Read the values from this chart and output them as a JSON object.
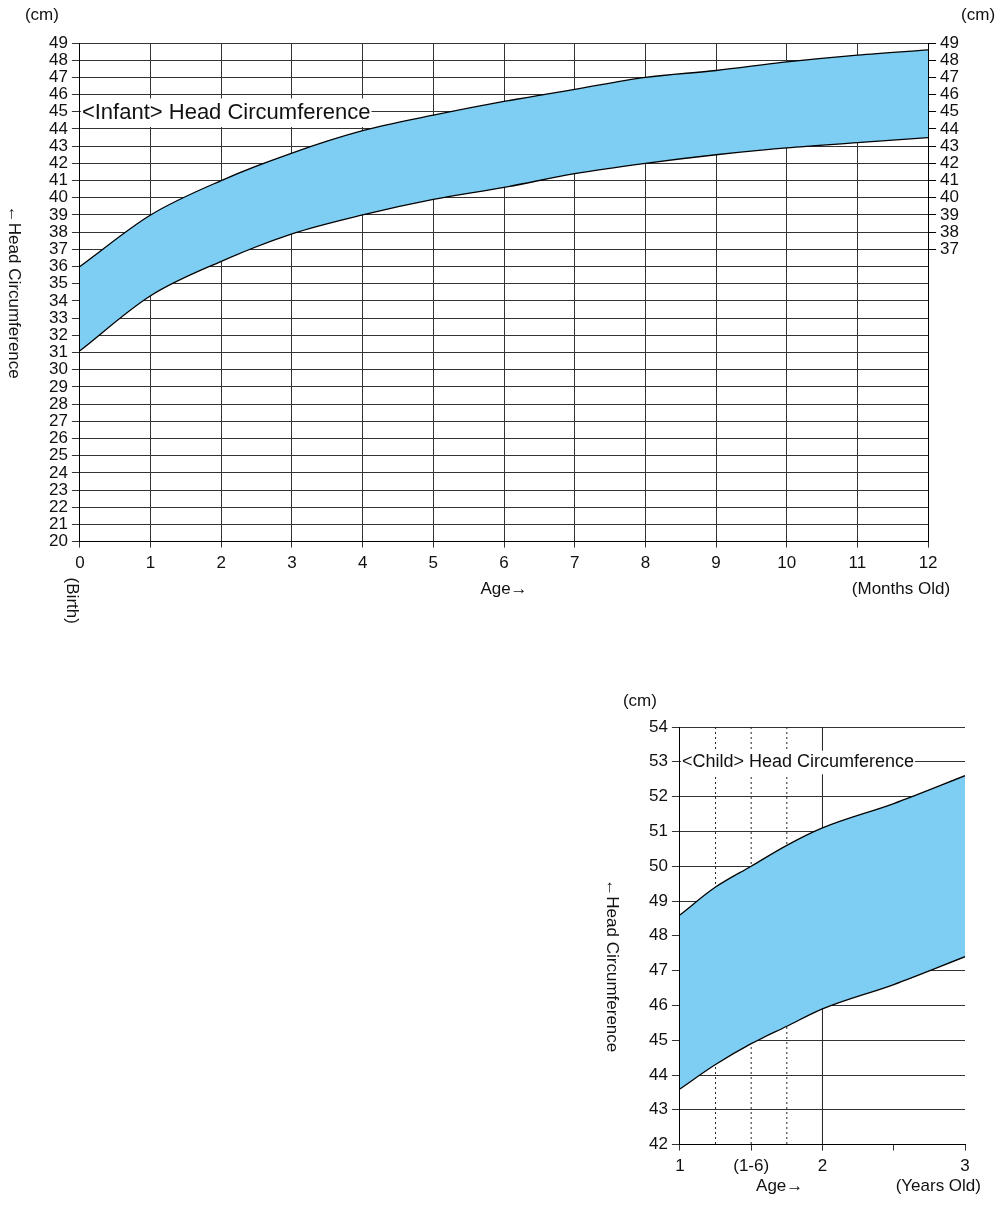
{
  "chart_data": [
    {
      "type": "line",
      "title": "<Infant> Head Circumference",
      "xlabel": "Age→",
      "ylabel": "←Head Circumference",
      "annotations": [
        "(cm)",
        "(cm)",
        "(Birth)",
        "(Months Old)"
      ],
      "x": [
        0,
        1,
        2,
        3,
        4,
        5,
        6,
        7,
        8,
        9,
        10,
        11,
        12
      ],
      "series": [
        {
          "type": "line",
          "color": "#000000",
          "values": [
            31.1,
            34.3,
            36.3,
            37.9,
            39.0,
            39.9,
            40.6,
            41.4,
            42.0,
            42.5,
            42.9,
            43.2,
            43.5
          ]
        },
        {
          "type": "area",
          "color": "#7ecef4",
          "values": [
            36.0,
            39.0,
            41.0,
            42.6,
            43.9,
            44.8,
            45.6,
            46.3,
            47.0,
            47.4,
            47.9,
            48.3,
            48.6
          ]
        }
      ],
      "xlim": [
        0,
        12
      ],
      "xticks": [
        0,
        1,
        2,
        3,
        4,
        5,
        6,
        7,
        8,
        9,
        10,
        11,
        12
      ],
      "ylim": [
        20,
        49
      ],
      "yticks": [
        20,
        21,
        22,
        23,
        24,
        25,
        26,
        27,
        28,
        29,
        30,
        31,
        32,
        33,
        34,
        35,
        36,
        37,
        38,
        39,
        40,
        41,
        42,
        43,
        44,
        45,
        46,
        47,
        48,
        49
      ],
      "y2lim": [
        20,
        49
      ],
      "y2ticks": [
        37,
        38,
        39,
        40,
        41,
        42,
        43,
        44,
        45,
        46,
        47,
        48,
        49
      ],
      "grid": true,
      "marker": "none"
    },
    {
      "type": "line",
      "title": "<Child> Head Circumference",
      "xlabel": "Age→",
      "ylabel": "←Head Circumference",
      "annotations": [
        "(cm)",
        "(Years Old)"
      ],
      "x": [
        1,
        1.25,
        1.5,
        1.75,
        2,
        2.5,
        3
      ],
      "series": [
        {
          "type": "line",
          "color": "#000000",
          "values": [
            43.6,
            44.3,
            44.9,
            45.4,
            45.9,
            46.6,
            47.4
          ]
        },
        {
          "type": "area",
          "color": "#7ecef4",
          "values": [
            48.6,
            49.4,
            50.0,
            50.6,
            51.1,
            51.8,
            52.6
          ]
        }
      ],
      "xlim": [
        1,
        3
      ],
      "xticks": [
        1,
        {
          "value": 1.5,
          "label": "(1-6)"
        },
        2,
        {
          "value": 2.5,
          "label": null
        },
        3
      ],
      "ylim": [
        42,
        54
      ],
      "yticks": [
        42,
        43,
        44,
        45,
        46,
        47,
        48,
        49,
        50,
        51,
        52,
        53,
        54
      ],
      "grid": "y",
      "marker": "none",
      "ref_lines": [
        {
          "axis": "x",
          "value": 1.25,
          "line_style": "dotted"
        },
        {
          "axis": "x",
          "value": 1.5,
          "line_style": "dotted"
        },
        {
          "axis": "x",
          "value": 1.75,
          "line_style": "dotted"
        },
        {
          "axis": "x",
          "value": 2,
          "line_style": "solid"
        }
      ]
    }
  ]
}
